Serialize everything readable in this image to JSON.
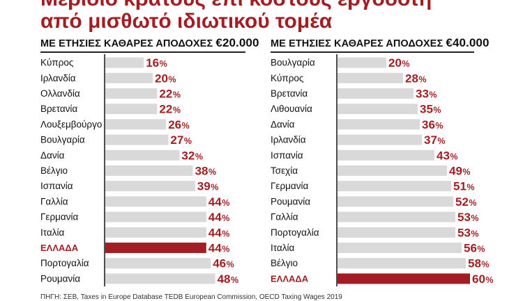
{
  "title": {
    "line1": "Μερίδιο κράτους επί κόστους εργοδότη",
    "line2": "από μισθωτό ιδιωτικού τομέα"
  },
  "colors": {
    "accent": "#a41d22",
    "bar": "#d9d9d9",
    "highlight_bar": "#a41d22",
    "text": "#111111"
  },
  "chart_data": [
    {
      "type": "bar",
      "orientation": "horizontal",
      "title_prefix": "ΜΕ ΕΤΗΣΙΕΣ ΚΑΘΑΡΕΣ ΑΠΟΔΟΧΕΣ",
      "title_amount": "€20.000",
      "unit": "%",
      "highlight": "ΕΛΛΑΔΑ",
      "categories": [
        "Κύπρος",
        "Ιρλανδία",
        "Ολλανδία",
        "Βρετανία",
        "Λουξεμβούργο",
        "Βουλγαρία",
        "Δανία",
        "Βέλγιο",
        "Ισπανία",
        "Γαλλία",
        "Γερμανία",
        "Ιταλία",
        "ΕΛΛΑΔΑ",
        "Πορτογαλία",
        "Ρουμανία"
      ],
      "values": [
        16,
        20,
        22,
        22,
        26,
        27,
        32,
        38,
        39,
        44,
        44,
        44,
        44,
        46,
        48
      ]
    },
    {
      "type": "bar",
      "orientation": "horizontal",
      "title_prefix": "ΜΕ ΕΤΗΣΙΕΣ ΚΑΘΑΡΕΣ ΑΠΟΔΟΧΕΣ",
      "title_amount": "€40.000",
      "unit": "%",
      "highlight": "ΕΛΛΑΔΑ",
      "categories": [
        "Βουλγαρία",
        "Κύπρος",
        "Βρετανία",
        "Λιθουανία",
        "Δανία",
        "Ιρλανδία",
        "Ισπανία",
        "Τσεχία",
        "Γερμανία",
        "Ρουμανία",
        "Γαλλία",
        "Πορτογαλία",
        "Ιταλία",
        "Βέλγιο",
        "ΕΛΛΑΔΑ"
      ],
      "values": [
        20,
        28,
        33,
        35,
        36,
        37,
        43,
        49,
        51,
        52,
        53,
        53,
        56,
        58,
        60
      ]
    }
  ],
  "source": "ΠΗΓΗ: ΣΕΒ, Taxes in Europe Database TEDB European Commission, OECD Taxing Wages 2019"
}
